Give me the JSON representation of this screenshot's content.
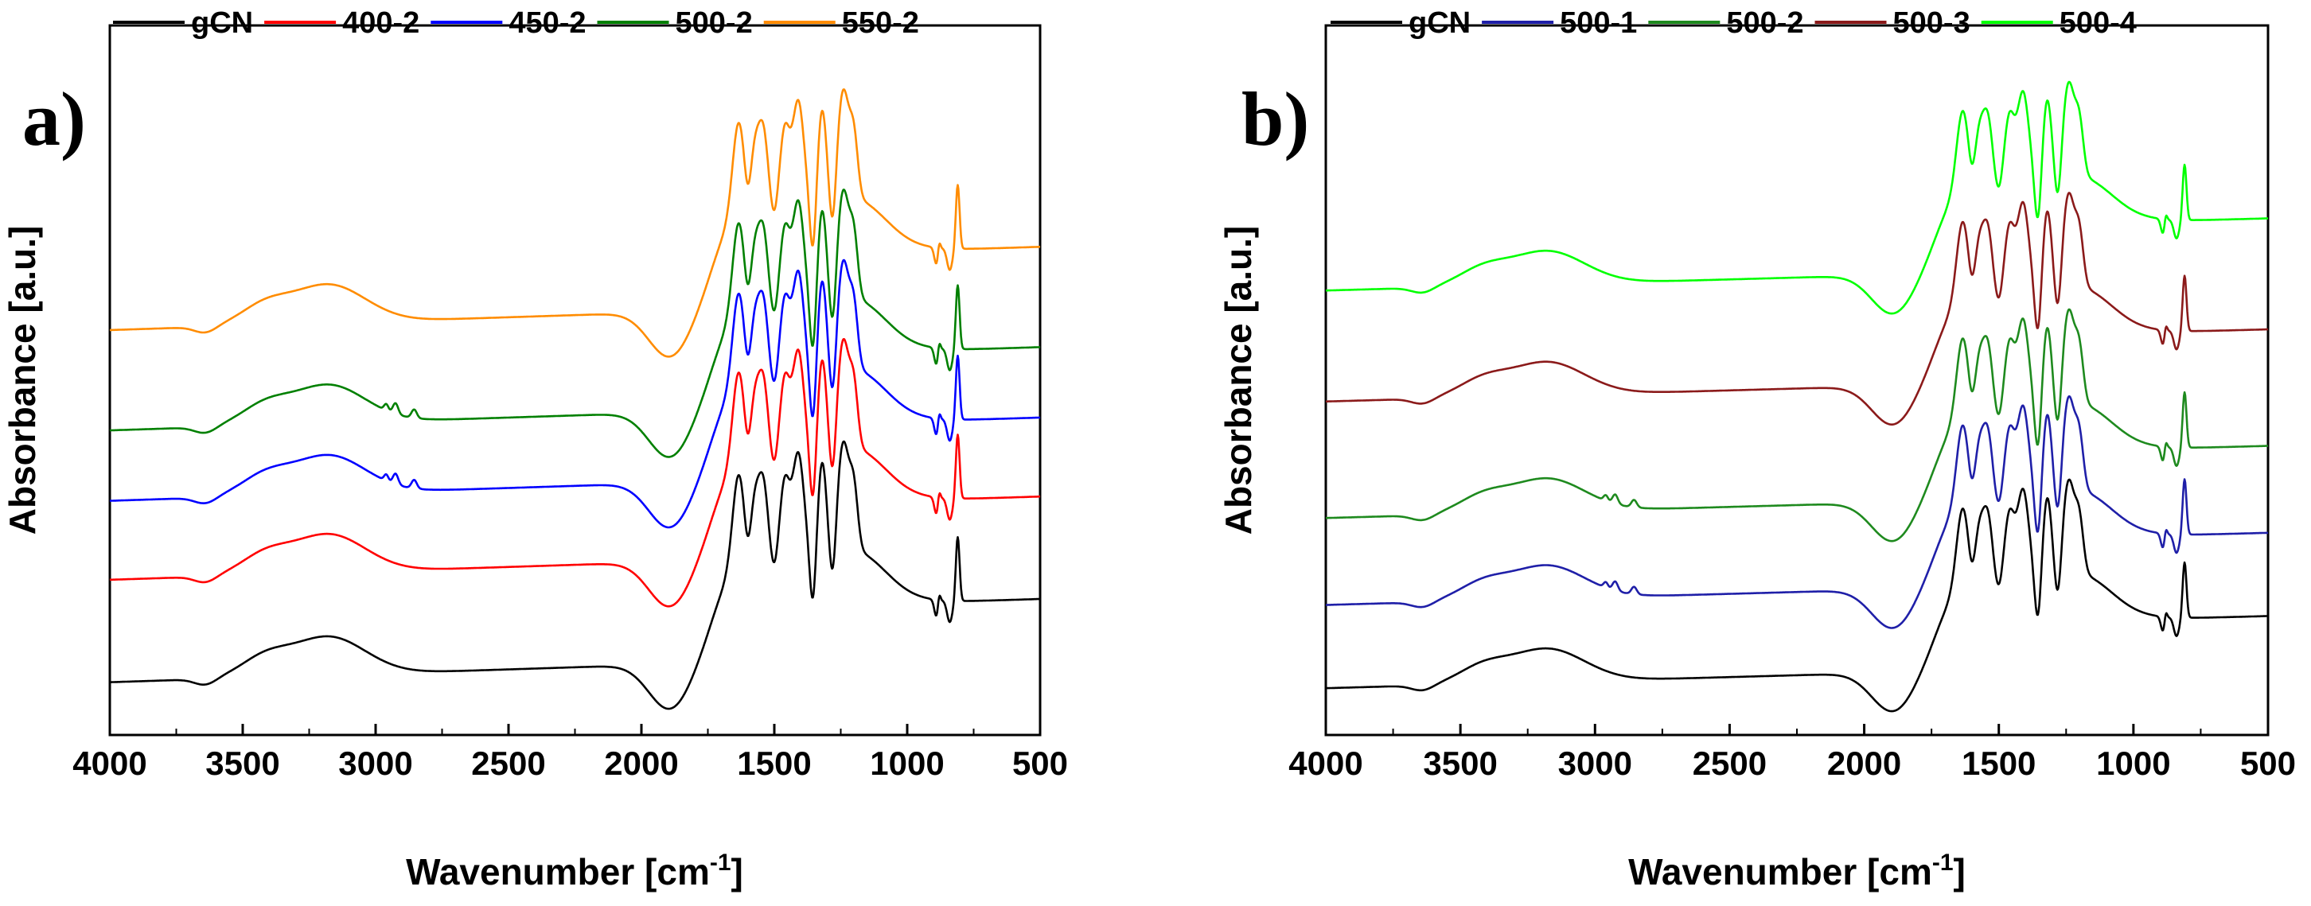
{
  "figure": {
    "type": "ftir_spectra_two_panels"
  },
  "chart_data": [
    {
      "type": "line",
      "panel_label": "a)",
      "xlabel": "Wavenumber [cm",
      "xlabel_sup": "-1",
      "xlabel_end": "]",
      "ylabel": "Absorbance [a.u.]",
      "xlim": [
        4000,
        500
      ],
      "x_reversed": true,
      "xticks": [
        4000,
        3500,
        3000,
        2500,
        2000,
        1500,
        1000,
        500
      ],
      "y_ticks_shown": false,
      "legend_position": "top",
      "series": [
        {
          "name": "gCN",
          "color": "#000000",
          "offset": 0.0,
          "spectrum": "base"
        },
        {
          "name": "400-2",
          "color": "#ff0000",
          "offset": 0.48,
          "spectrum": "base"
        },
        {
          "name": "450-2",
          "color": "#0000ff",
          "offset": 0.85,
          "spectrum": "with_ch"
        },
        {
          "name": "500-2",
          "color": "#008000",
          "offset": 1.18,
          "spectrum": "with_ch"
        },
        {
          "name": "550-2",
          "color": "#ff8c00",
          "offset": 1.65,
          "spectrum": "base"
        }
      ]
    },
    {
      "type": "line",
      "panel_label": "b)",
      "xlabel": "Wavenumber [cm",
      "xlabel_sup": "-1",
      "xlabel_end": "]",
      "ylabel": "Absorbance [a.u.]",
      "xlim": [
        4000,
        500
      ],
      "x_reversed": true,
      "xticks": [
        4000,
        3500,
        3000,
        2500,
        2000,
        1500,
        1000,
        500
      ],
      "y_ticks_shown": false,
      "legend_position": "top",
      "series": [
        {
          "name": "gCN",
          "color": "#000000",
          "offset": 0.0,
          "spectrum": "base"
        },
        {
          "name": "500-1",
          "color": "#1f1fa8",
          "offset": 0.45,
          "spectrum": "with_ch"
        },
        {
          "name": "500-2",
          "color": "#1e8a1e",
          "offset": 0.92,
          "spectrum": "with_ch"
        },
        {
          "name": "500-3",
          "color": "#8b1a1a",
          "offset": 1.55,
          "spectrum": "base"
        },
        {
          "name": "500-4",
          "color": "#00ff00",
          "offset": 2.15,
          "spectrum": "base"
        }
      ]
    }
  ]
}
